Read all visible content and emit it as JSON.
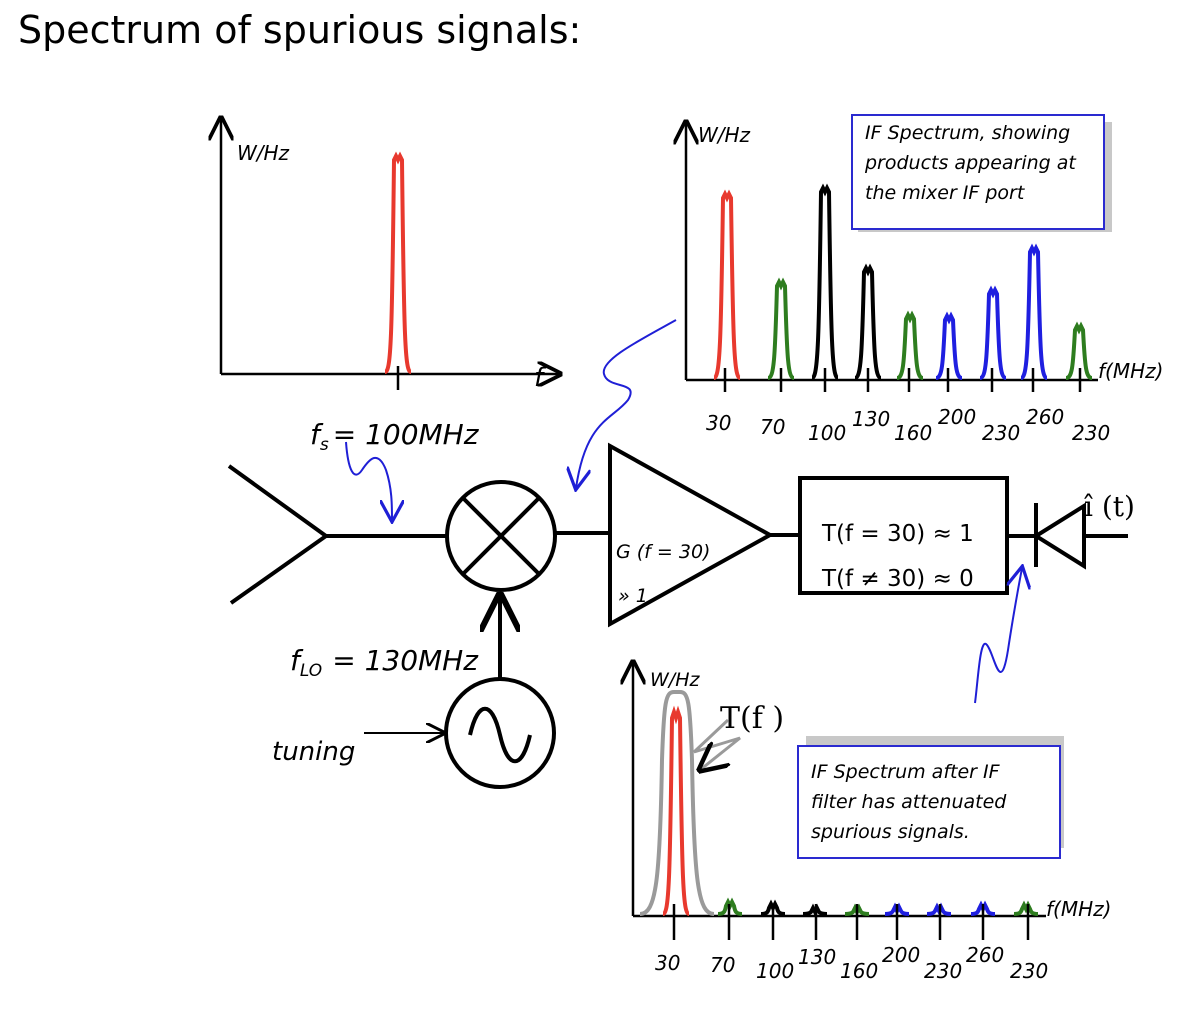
{
  "title": "Spectrum of spurious signals:",
  "colors": {
    "red": "#e8392e",
    "green": "#2e7d1f",
    "black": "#000000",
    "blue": "#1f1fe0",
    "gray": "#9a9a9a",
    "annot": "#1f1fd6",
    "caption_border": "#2a2ad0"
  },
  "input_plot": {
    "ylabel": "W/Hz",
    "xlabel": "f"
  },
  "if_plot": {
    "ylabel": "W/Hz",
    "xlabel": "f(MHz)",
    "tick_labels": [
      "30",
      "70",
      "100",
      "130",
      "160",
      "200",
      "230",
      "260",
      "230"
    ],
    "caption": [
      "IF Spectrum, showing",
      "products appearing at",
      "the mixer IF port"
    ]
  },
  "filtered_plot": {
    "ylabel": "W/Hz",
    "xlabel": "f(MHz)",
    "filter_label": "T(f )",
    "tick_labels": [
      "30",
      "70",
      "100",
      "130",
      "160",
      "200",
      "230",
      "260",
      "230"
    ],
    "caption": [
      "IF Spectrum after IF",
      "filter has attenuated",
      "spurious signals."
    ]
  },
  "block": {
    "fs_label": "f",
    "fs_sub": "s",
    "fs_value": "= 100MHz",
    "flo_label": "f",
    "flo_sub": "LO",
    "flo_value": "= 130MHz",
    "tuning_label": "tuning",
    "amp_label_1": "G (f  = 30)",
    "amp_label_2": "» 1",
    "filter_line_1": "T(f  = 30) ≈ 1",
    "filter_line_2": "T(f  ≠ 30) ≈ 0",
    "detector_label": "î (t)"
  }
}
